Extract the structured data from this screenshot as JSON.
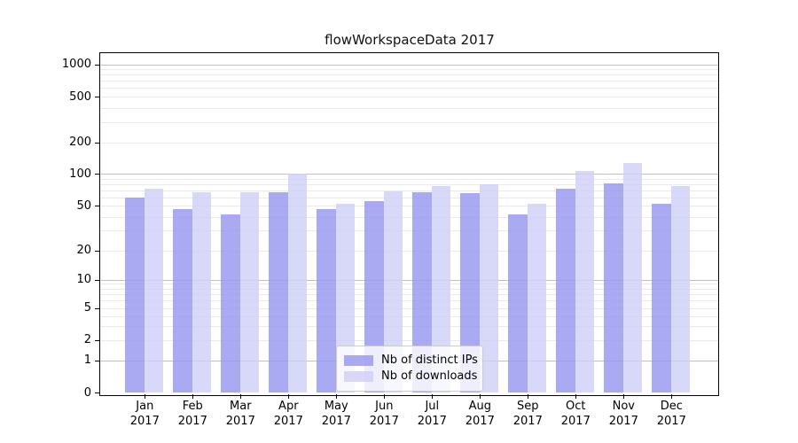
{
  "window": {
    "background": "#ffffff"
  },
  "chart_data": {
    "type": "bar",
    "title": "flowWorkspaceData 2017",
    "categories": [
      "Jan",
      "Feb",
      "Mar",
      "Apr",
      "May",
      "Jun",
      "Jul",
      "Aug",
      "Sep",
      "Oct",
      "Nov",
      "Dec"
    ],
    "x_year_label": "2017",
    "series": [
      {
        "name": "Nb of distinct IPs",
        "color": "#9797ef",
        "values": [
          60,
          47,
          42,
          67,
          47,
          55,
          67,
          66,
          42,
          73,
          82,
          52
        ]
      },
      {
        "name": "Nb of downloads",
        "color": "#cfcff7",
        "values": [
          73,
          67,
          67,
          100,
          52,
          68,
          77,
          80,
          52,
          107,
          127,
          76
        ]
      }
    ],
    "xlabel": "",
    "ylabel": "",
    "yscale": "symlog",
    "yticks": [
      0,
      1,
      2,
      5,
      10,
      20,
      50,
      100,
      200,
      500,
      1000
    ],
    "ylim": [
      0,
      1300
    ],
    "grid": "on",
    "legend_position": "lower-center"
  }
}
